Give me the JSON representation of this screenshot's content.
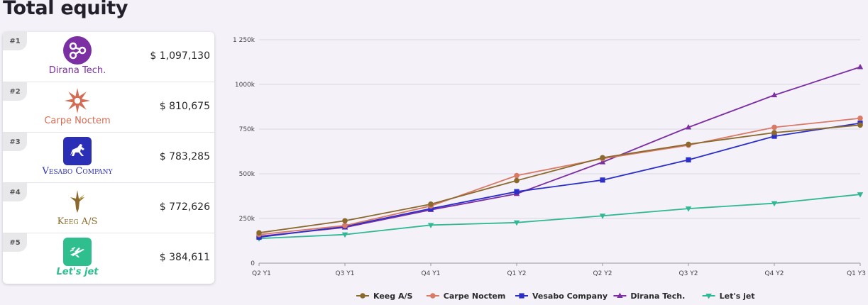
{
  "page": {
    "title": "Total equity"
  },
  "ranking": [
    {
      "rank": "#1",
      "name": "Dirana Tech.",
      "value": "$ 1,097,130",
      "color": "#7b2fa3",
      "icon": "nodes-icon"
    },
    {
      "rank": "#2",
      "name": "Carpe Noctem",
      "value": "$ 810,675",
      "color": "#d46b52",
      "icon": "sunburst-icon"
    },
    {
      "rank": "#3",
      "name": "Vesabo Company",
      "value": "$ 783,285",
      "color": "#2b2fb5",
      "icon": "horse-icon"
    },
    {
      "rank": "#4",
      "name": "Keeg A/S",
      "value": "$ 772,626",
      "color": "#8a6a2c",
      "icon": "hummingbird-icon"
    },
    {
      "rank": "#5",
      "name": "Let's jet",
      "value": "$ 384,611",
      "color": "#2fbf8f",
      "icon": "jet-icon"
    }
  ],
  "chart_data": {
    "type": "line",
    "title": "",
    "xlabel": "",
    "ylabel": "",
    "x": [
      "Q2 Y1",
      "Q3 Y1",
      "Q4 Y1",
      "Q1 Y2",
      "Q2 Y2",
      "Q3 Y2",
      "Q4 Y2",
      "Q1 Y3"
    ],
    "yticks": [
      0,
      250000,
      500000,
      750000,
      1000000,
      1250000
    ],
    "ytick_labels": [
      "0",
      "250k",
      "500k",
      "750k",
      "1000k",
      "1 250k"
    ],
    "ylim": [
      0,
      1250000
    ],
    "grid": true,
    "legend_position": "bottom",
    "series": [
      {
        "name": "Keeg A/S",
        "color": "#8a6a2c",
        "marker": "circle",
        "values": [
          170000,
          237000,
          330000,
          462000,
          590000,
          665000,
          730000,
          772626
        ]
      },
      {
        "name": "Carpe Noctem",
        "color": "#d97a66",
        "marker": "circle",
        "values": [
          160000,
          210000,
          320000,
          490000,
          585000,
          660000,
          760000,
          810675
        ]
      },
      {
        "name": "Vesabo Company",
        "color": "#2b2fc7",
        "marker": "square",
        "values": [
          145000,
          205000,
          305000,
          400000,
          465000,
          578000,
          710000,
          783285
        ]
      },
      {
        "name": "Dirana Tech.",
        "color": "#7b2fa3",
        "marker": "triangle-up",
        "values": [
          150000,
          200000,
          298000,
          388000,
          565000,
          760000,
          940000,
          1097130
        ]
      },
      {
        "name": "Let's jet",
        "color": "#2fb893",
        "marker": "triangle-down",
        "values": [
          138000,
          160000,
          213000,
          227000,
          265000,
          305000,
          335000,
          384611
        ]
      }
    ]
  }
}
